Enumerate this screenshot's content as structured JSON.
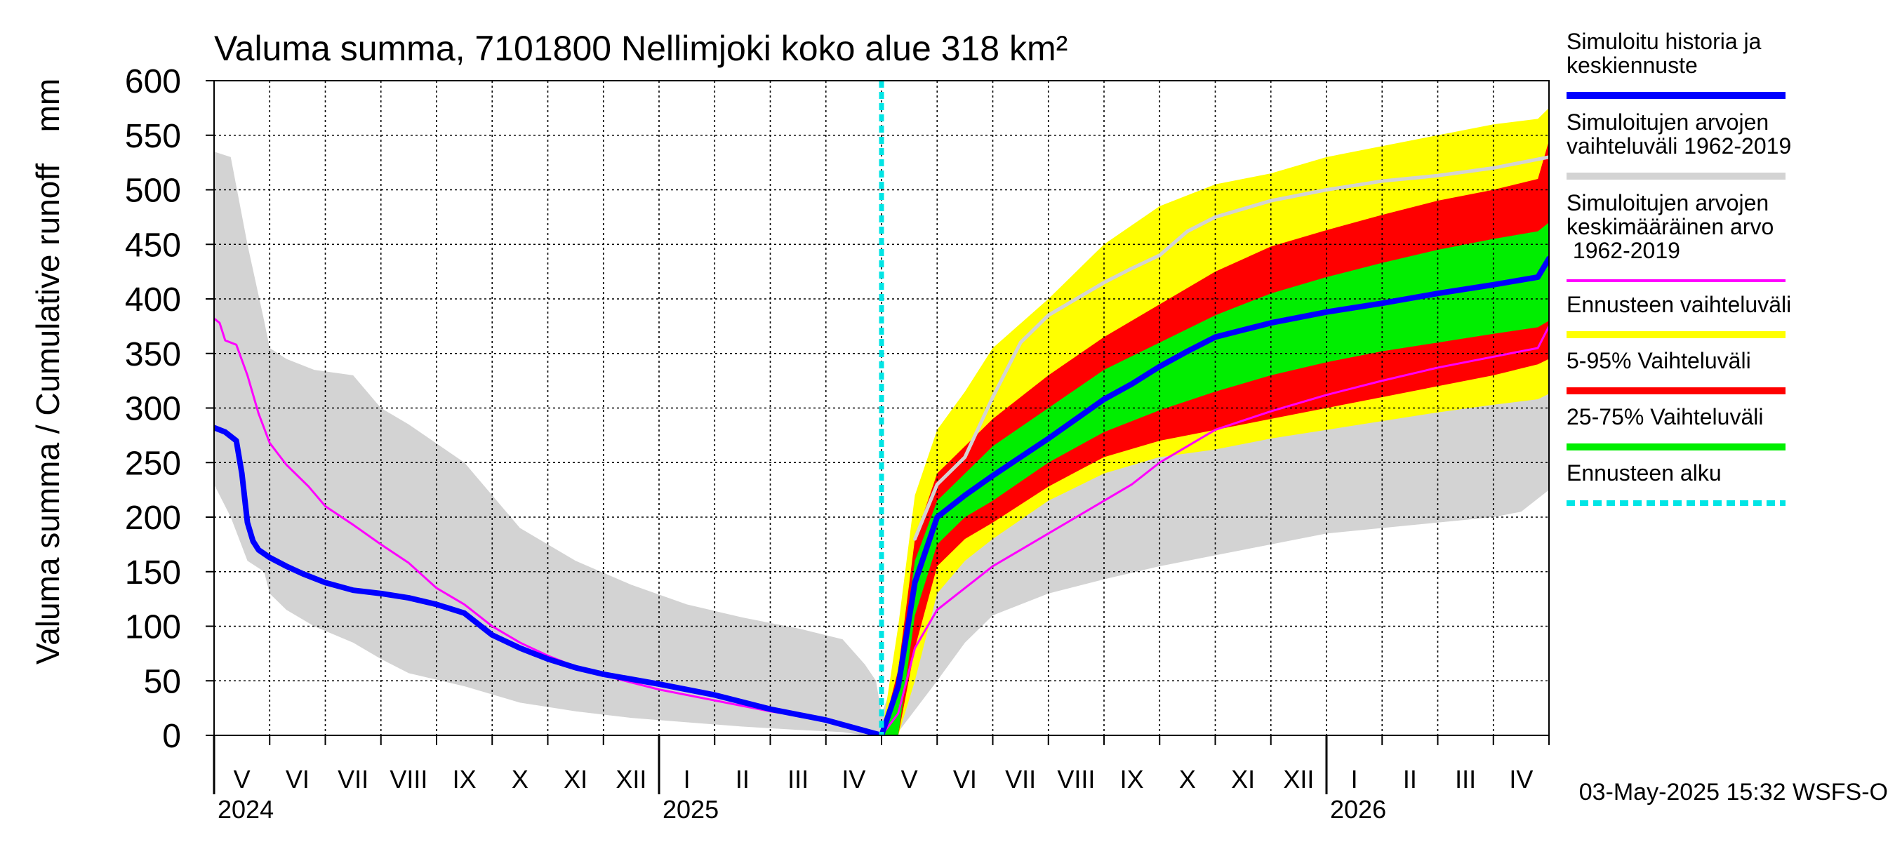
{
  "chart_data": {
    "type": "area",
    "title": "Valuma summa, 7101800 Nellimjoki koko alue 318 km²",
    "ylabel": "Valuma summa / Cumulative runoff",
    "yunit": "mm",
    "ylim": [
      0,
      600
    ],
    "yticks": [
      0,
      50,
      100,
      150,
      200,
      250,
      300,
      350,
      400,
      450,
      500,
      550,
      600
    ],
    "grid": true,
    "x_unit": "month index (0 = start of May 2024, 24 = end of April 2026)",
    "xlim": [
      0,
      24
    ],
    "forecast_start_x": 12,
    "months": [
      {
        "label": "V",
        "x": 0.5
      },
      {
        "label": "VI",
        "x": 1.5
      },
      {
        "label": "VII",
        "x": 2.5
      },
      {
        "label": "VIII",
        "x": 3.5
      },
      {
        "label": "IX",
        "x": 4.5
      },
      {
        "label": "X",
        "x": 5.5
      },
      {
        "label": "XI",
        "x": 6.5
      },
      {
        "label": "XII",
        "x": 7.5
      },
      {
        "label": "I",
        "x": 8.5
      },
      {
        "label": "II",
        "x": 9.5
      },
      {
        "label": "III",
        "x": 10.5
      },
      {
        "label": "IV",
        "x": 11.5
      },
      {
        "label": "V",
        "x": 12.5
      },
      {
        "label": "VI",
        "x": 13.5
      },
      {
        "label": "VII",
        "x": 14.5
      },
      {
        "label": "VIII",
        "x": 15.5
      },
      {
        "label": "IX",
        "x": 16.5
      },
      {
        "label": "X",
        "x": 17.5
      },
      {
        "label": "XI",
        "x": 18.5
      },
      {
        "label": "XII",
        "x": 19.5
      },
      {
        "label": "I",
        "x": 20.5
      },
      {
        "label": "II",
        "x": 21.5
      },
      {
        "label": "III",
        "x": 22.5
      },
      {
        "label": "IV",
        "x": 23.5
      }
    ],
    "years": [
      {
        "label": "2024",
        "x": 0
      },
      {
        "label": "2025",
        "x": 8
      },
      {
        "label": "2026",
        "x": 20
      }
    ],
    "series": [
      {
        "name": "Simuloitujen arvojen vaihteluväli 1962-2019",
        "kind": "band",
        "color": "#d3d3d3",
        "x": [
          0,
          0.3,
          0.6,
          0.9,
          1.0,
          1.3,
          1.8,
          2.5,
          3.0,
          3.5,
          4.5,
          5.5,
          6.5,
          7.5,
          8.5,
          9.5,
          10.5,
          11.3,
          11.7,
          11.9,
          12.0,
          12.3,
          13.0,
          13.5,
          14.0,
          15.0,
          16.0,
          17.0,
          18.0,
          19.0,
          20.0,
          21.0,
          22.0,
          23.0,
          23.5,
          24.0
        ],
        "upper": [
          535,
          530,
          450,
          380,
          355,
          345,
          335,
          330,
          300,
          285,
          250,
          190,
          160,
          138,
          120,
          108,
          98,
          88,
          65,
          50,
          20,
          60,
          175,
          230,
          265,
          305,
          320,
          325,
          330,
          335,
          342,
          330,
          327,
          328,
          325,
          390
        ],
        "lower": [
          230,
          200,
          160,
          150,
          130,
          115,
          100,
          85,
          70,
          57,
          45,
          30,
          22,
          16,
          12,
          8,
          5,
          3,
          0,
          0,
          0,
          3,
          50,
          85,
          110,
          130,
          143,
          155,
          165,
          175,
          185,
          190,
          195,
          200,
          205,
          225
        ]
      },
      {
        "name": "Ennusteen vaihteluväli",
        "kind": "band",
        "color": "#ffff00",
        "x": [
          12,
          12.3,
          12.6,
          13.0,
          13.5,
          14.0,
          15.0,
          16.0,
          17.0,
          18.0,
          19.0,
          20.0,
          21.0,
          22.0,
          23.0,
          23.8,
          24.0
        ],
        "upper": [
          0,
          100,
          220,
          280,
          315,
          355,
          400,
          450,
          485,
          505,
          515,
          530,
          540,
          550,
          560,
          565,
          575
        ],
        "lower": [
          0,
          0,
          50,
          130,
          160,
          180,
          215,
          240,
          255,
          262,
          272,
          280,
          288,
          296,
          303,
          308,
          313
        ]
      },
      {
        "name": "5-95% Vaihteluväli",
        "kind": "band",
        "color": "#ff0000",
        "x": [
          12,
          12.3,
          12.6,
          13.0,
          13.5,
          14.0,
          15.0,
          16.0,
          17.0,
          18.0,
          19.0,
          20.0,
          21.0,
          22.0,
          23.0,
          23.8,
          24.0
        ],
        "upper": [
          0,
          60,
          180,
          240,
          265,
          290,
          330,
          365,
          395,
          425,
          448,
          463,
          477,
          490,
          500,
          510,
          545
        ],
        "lower": [
          0,
          0,
          80,
          155,
          180,
          195,
          228,
          255,
          270,
          280,
          290,
          300,
          310,
          320,
          330,
          340,
          345
        ]
      },
      {
        "name": "25-75% Vaihteluväli",
        "kind": "band",
        "color": "#00ee00",
        "x": [
          12,
          12.3,
          12.6,
          13.0,
          13.5,
          14.0,
          15.0,
          16.0,
          17.0,
          18.0,
          19.0,
          20.0,
          21.0,
          22.0,
          23.0,
          23.8,
          24.0
        ],
        "upper": [
          0,
          50,
          160,
          215,
          240,
          265,
          300,
          335,
          360,
          385,
          405,
          420,
          433,
          445,
          455,
          462,
          470
        ],
        "lower": [
          0,
          0,
          110,
          175,
          200,
          215,
          250,
          278,
          298,
          315,
          330,
          342,
          352,
          360,
          368,
          374,
          380
        ]
      },
      {
        "name": "Simuloitujen arvojen keskimääräinen arvo 1962-2019",
        "kind": "line",
        "color": "#ff00ff",
        "width": 3,
        "x": [
          0,
          0.1,
          0.2,
          0.4,
          0.6,
          0.8,
          1.0,
          1.3,
          1.7,
          2.0,
          2.5,
          3.0,
          3.5,
          4.0,
          4.5,
          5.0,
          5.5,
          6.0,
          6.5,
          7.0,
          8.0,
          9.0,
          10.0,
          11.0,
          12.0,
          12.3,
          12.6,
          13.0,
          13.5,
          14.0,
          14.5,
          15.0,
          15.5,
          16.0,
          16.5,
          17.0,
          17.5,
          18.0,
          19.0,
          20.0,
          21.0,
          22.0,
          23.0,
          23.8,
          24.0
        ],
        "y": [
          382,
          378,
          362,
          358,
          330,
          295,
          268,
          248,
          228,
          210,
          193,
          175,
          158,
          135,
          120,
          100,
          85,
          73,
          63,
          55,
          42,
          32,
          22,
          14,
          0,
          20,
          80,
          115,
          135,
          155,
          170,
          185,
          200,
          215,
          230,
          250,
          265,
          280,
          297,
          312,
          325,
          337,
          347,
          355,
          375
        ]
      },
      {
        "name": "Simuloitu historia ja keskiennuste",
        "kind": "line",
        "color": "#0000ff",
        "width": 8,
        "x": [
          0,
          0.2,
          0.4,
          0.5,
          0.6,
          0.7,
          0.8,
          1.0,
          1.3,
          1.6,
          2.0,
          2.5,
          3.0,
          3.5,
          4.0,
          4.5,
          5.0,
          5.5,
          6.0,
          6.5,
          7.0,
          8.0,
          9.0,
          10.0,
          11.0,
          12.0,
          12.3,
          12.6,
          13.0,
          13.5,
          14.0,
          14.5,
          15.0,
          15.5,
          16.0,
          16.5,
          17.0,
          17.5,
          18.0,
          19.0,
          20.0,
          21.0,
          22.0,
          23.0,
          23.8,
          24.0
        ],
        "y": [
          282,
          278,
          270,
          240,
          195,
          178,
          170,
          163,
          155,
          148,
          140,
          133,
          130,
          126,
          120,
          112,
          92,
          80,
          70,
          62,
          56,
          47,
          37,
          24,
          14,
          0,
          45,
          140,
          200,
          220,
          238,
          255,
          272,
          290,
          308,
          322,
          338,
          352,
          365,
          378,
          388,
          396,
          405,
          413,
          420,
          437
        ]
      },
      {
        "name": "Simuloitujen arvojen vaihteluväli 1962-2019 (mediaani)",
        "kind": "line",
        "color": "#d3d3d3",
        "width": 5,
        "x": [
          12.6,
          13.0,
          13.5,
          14.0,
          14.5,
          15.0,
          15.5,
          16.0,
          16.5,
          17.0,
          17.5,
          18.0,
          19.0,
          20.0,
          21.0,
          22.0,
          23.0,
          24.0
        ],
        "y": [
          180,
          230,
          255,
          310,
          360,
          385,
          400,
          415,
          428,
          440,
          462,
          475,
          490,
          500,
          508,
          513,
          520,
          530
        ]
      },
      {
        "name": "Ennusteen alku",
        "kind": "vline",
        "color": "#00e5e5",
        "x": 12
      }
    ],
    "legend": [
      {
        "label": "Simuloitu historia ja keskiennuste",
        "color": "#0000ff",
        "style": "line"
      },
      {
        "label": "Simuloitujen arvojen vaihteluväli 1962-2019",
        "color": "#d3d3d3",
        "style": "line"
      },
      {
        "label": "Simuloitujen arvojen keskimääräinen arvo 1962-2019",
        "color": "#ff00ff",
        "style": "thin"
      },
      {
        "label": "Ennusteen vaihteluväli",
        "color": "#ffff00",
        "style": "line"
      },
      {
        "label": "5-95% Vaihteluväli",
        "color": "#ff0000",
        "style": "line"
      },
      {
        "label": "25-75% Vaihteluväli",
        "color": "#00ee00",
        "style": "line"
      },
      {
        "label": "Ennusteen alku",
        "color": "#00e5e5",
        "style": "dashed"
      }
    ],
    "legend_position": "right",
    "timestamp": "03-May-2025 15:32 WSFS-O"
  }
}
